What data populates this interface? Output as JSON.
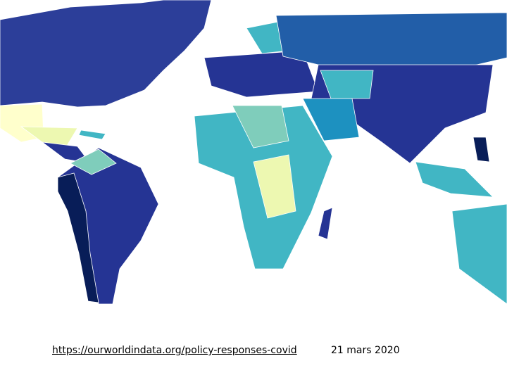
{
  "footer": {
    "link": "https://ourworldindata.org/policy-responses-covid",
    "date": "21 mars 2020"
  }
}
